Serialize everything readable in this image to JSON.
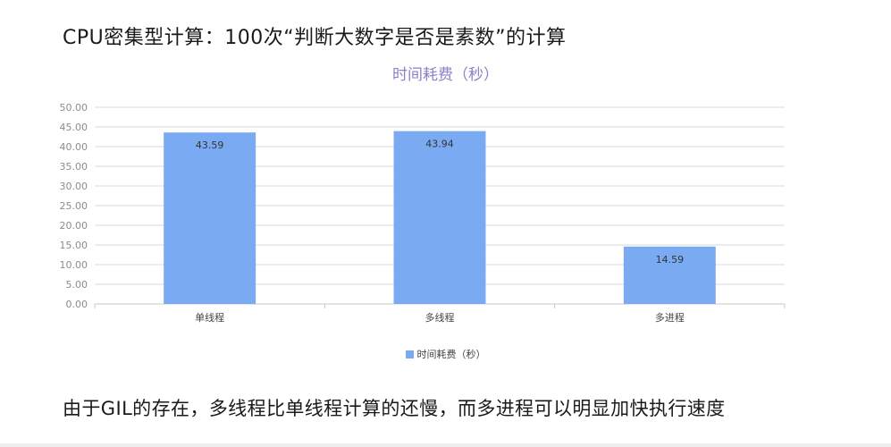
{
  "slide": {
    "title": "CPU密集型计算：100次“判断大数字是否是素数”的计算",
    "caption": "由于GIL的存在，多线程比单线程计算的还慢，而多进程可以明显加快执行速度"
  },
  "colors": {
    "bar": "#7aaaf2",
    "chart_title": "#8f7fc7",
    "grid": "#d9d9d9",
    "axis_text": "#8c8c8c"
  },
  "chart_data": {
    "type": "bar",
    "title": "时间耗费（秒）",
    "categories": [
      "单线程",
      "多线程",
      "多进程"
    ],
    "series": [
      {
        "name": "时间耗费（秒）",
        "values": [
          43.59,
          43.94,
          14.59
        ]
      }
    ],
    "data_labels": [
      "43.59",
      "43.94",
      "14.59"
    ],
    "ylim": [
      0,
      50
    ],
    "yticks": [
      "0.00",
      "5.00",
      "10.00",
      "15.00",
      "20.00",
      "25.00",
      "30.00",
      "35.00",
      "40.00",
      "45.00",
      "50.00"
    ],
    "xlabel": "",
    "ylabel": "",
    "grid": true,
    "legend": "bottom-center"
  }
}
